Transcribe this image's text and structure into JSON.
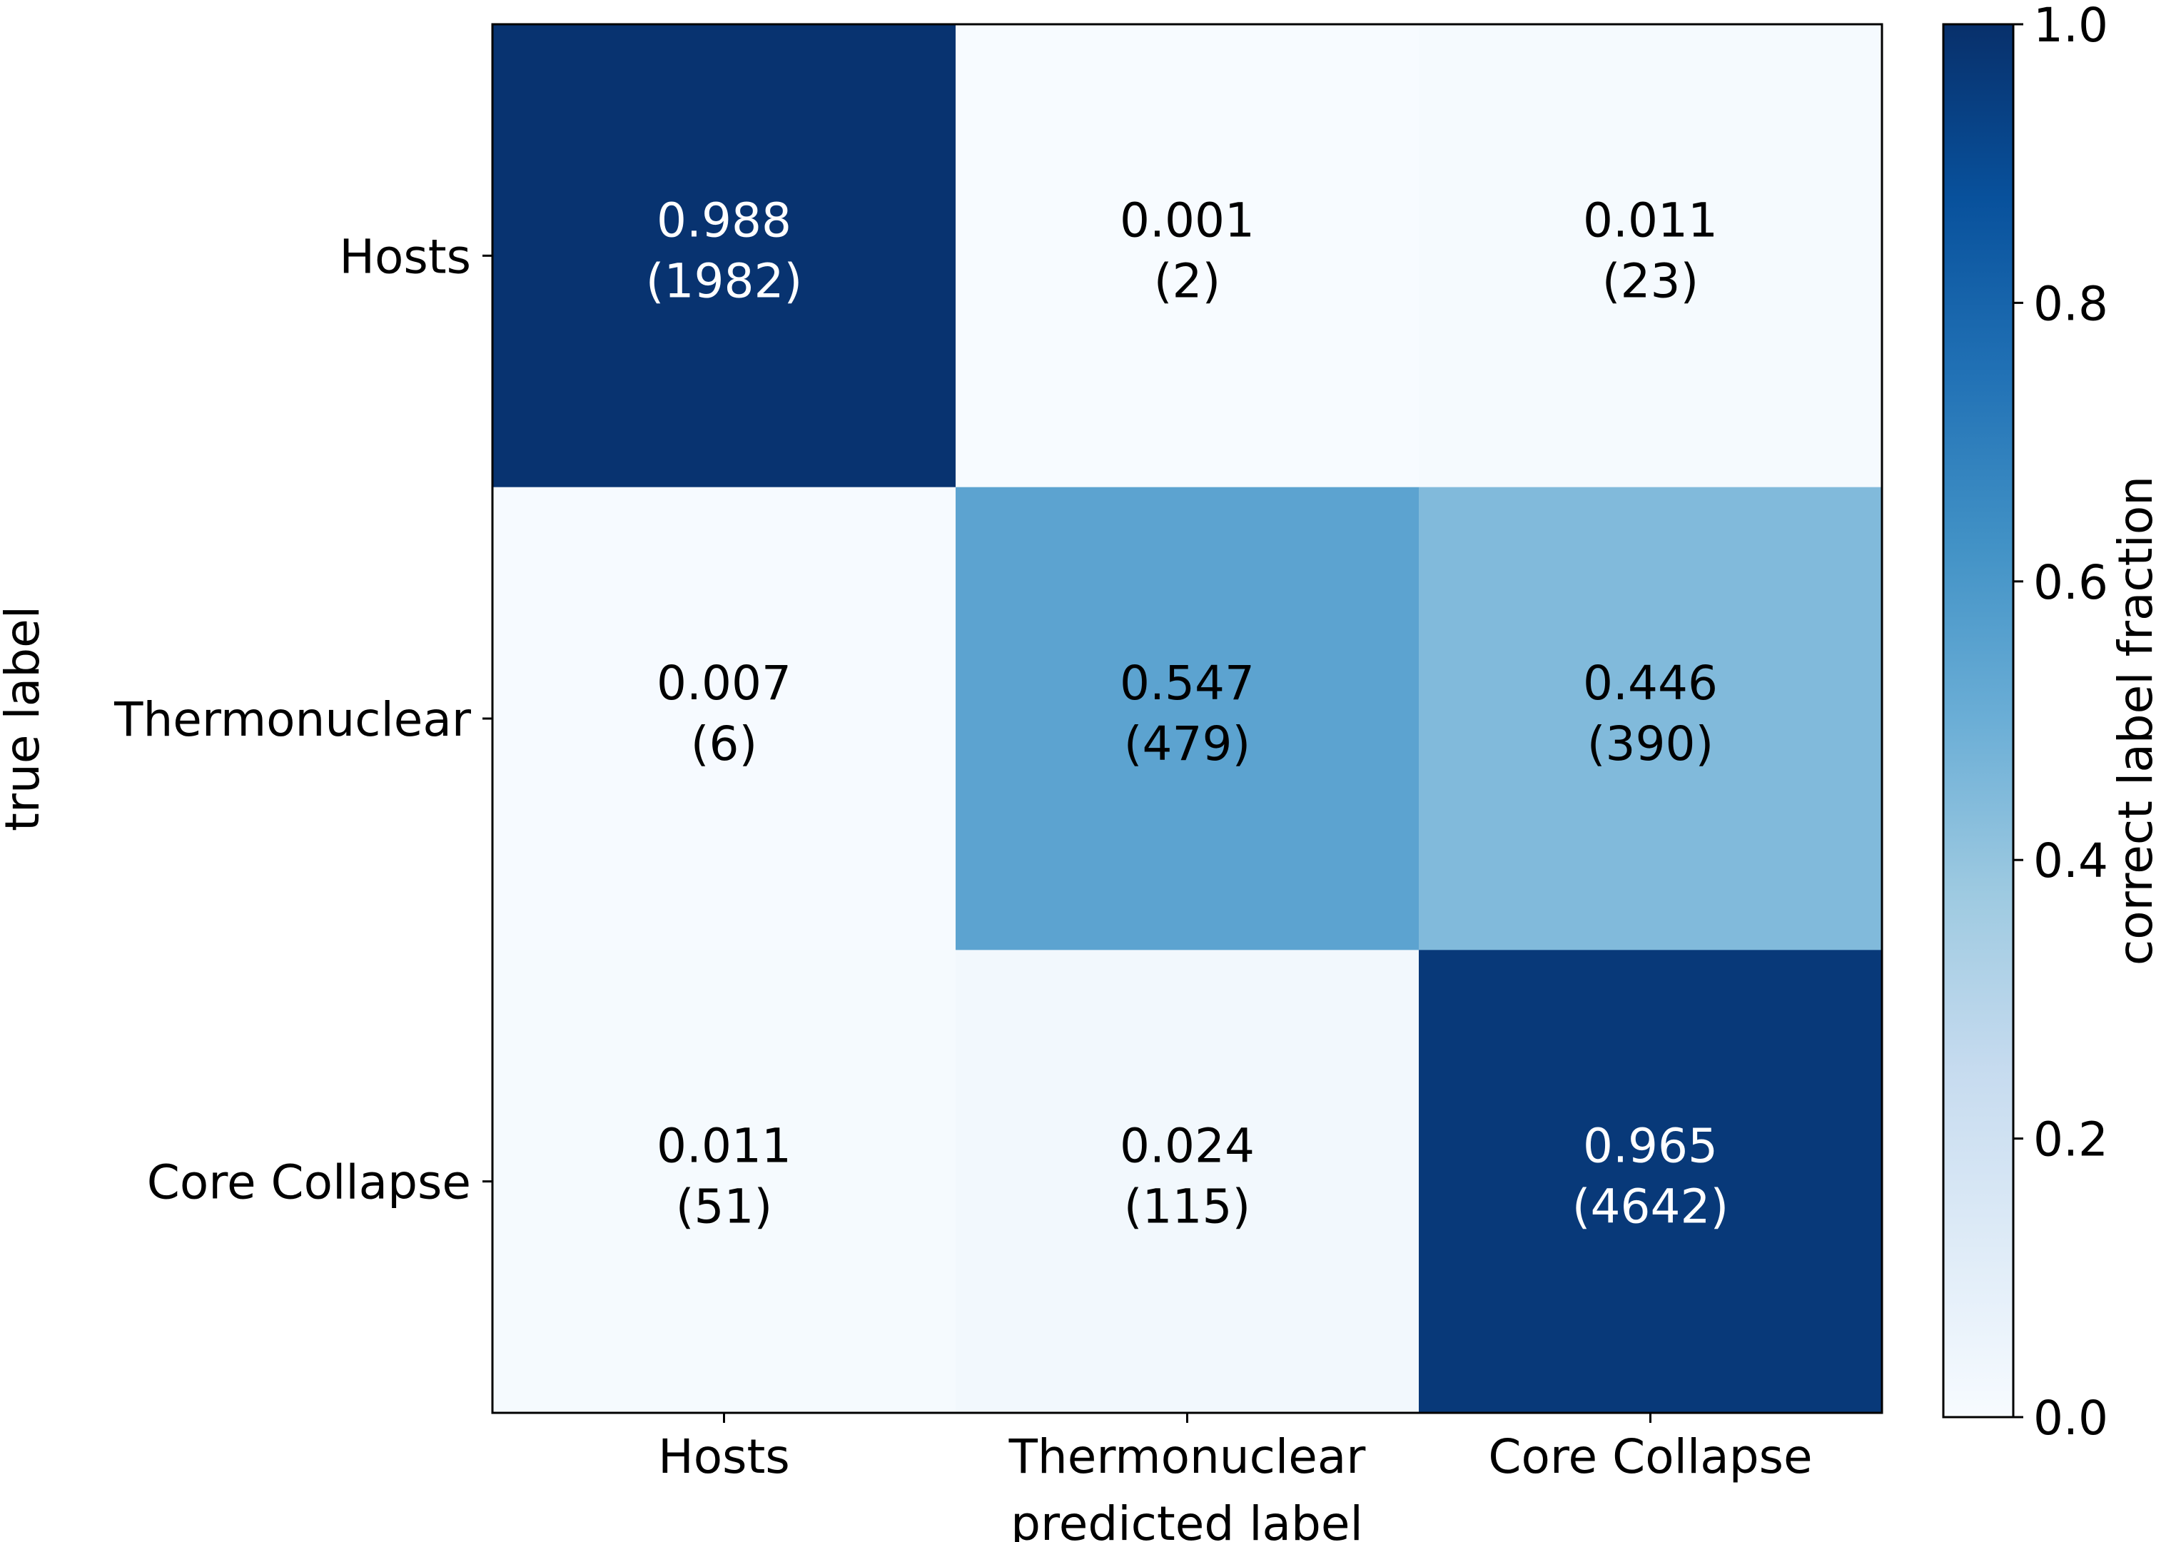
{
  "chart_data": {
    "type": "heatmap",
    "title": "",
    "xlabel": "predicted label",
    "ylabel": "true label",
    "x_categories": [
      "Hosts",
      "Thermonuclear",
      "Core Collapse"
    ],
    "y_categories": [
      "Hosts",
      "Thermonuclear",
      "Core Collapse"
    ],
    "values": [
      [
        0.988,
        0.001,
        0.011
      ],
      [
        0.007,
        0.547,
        0.446
      ],
      [
        0.011,
        0.024,
        0.965
      ]
    ],
    "counts": [
      [
        1982,
        2,
        23
      ],
      [
        6,
        479,
        390
      ],
      [
        51,
        115,
        4642
      ]
    ],
    "cell_labels": [
      [
        [
          "0.988",
          "(1982)"
        ],
        [
          "0.001",
          "(2)"
        ],
        [
          "0.011",
          "(23)"
        ]
      ],
      [
        [
          "0.007",
          "(6)"
        ],
        [
          "0.547",
          "(479)"
        ],
        [
          "0.446",
          "(390)"
        ]
      ],
      [
        [
          "0.011",
          "(51)"
        ],
        [
          "0.024",
          "(115)"
        ],
        [
          "0.965",
          "(4642)"
        ]
      ]
    ],
    "colormap": "Blues",
    "colorbar": {
      "label": "correct label fraction",
      "range": [
        0.0,
        1.0
      ],
      "ticks": [
        0.0,
        0.2,
        0.4,
        0.6,
        0.8,
        1.0
      ],
      "tick_labels": [
        "0.0",
        "0.2",
        "0.4",
        "0.6",
        "0.8",
        "1.0"
      ]
    },
    "grid": false
  }
}
